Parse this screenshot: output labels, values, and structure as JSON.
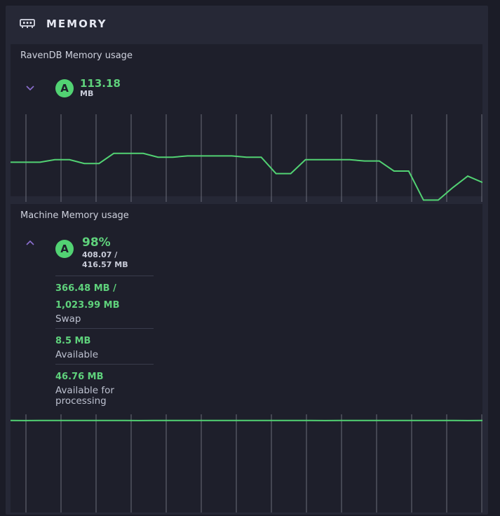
{
  "panel": {
    "title": "MEMORY",
    "icon": "memory-icon"
  },
  "colors": {
    "accent": "#52d273",
    "chevron": "#8c6fd1",
    "grid": "#6a6c7a",
    "background": "#1e1f2b"
  },
  "ravendb": {
    "title": "RavenDB Memory usage",
    "badge": "A",
    "value": "113.18",
    "unit": "MB",
    "chevron": "chevron-down-icon",
    "chart_data": {
      "type": "line",
      "series": [
        {
          "values": [
            62,
            62,
            62,
            64,
            64,
            61,
            61,
            69,
            69,
            69,
            66,
            66,
            67,
            67,
            67,
            67,
            66,
            66,
            53,
            53,
            64,
            64,
            64,
            64,
            63,
            63,
            55,
            55,
            32,
            32,
            42,
            51,
            46
          ]
        }
      ],
      "ylim": [
        0,
        100
      ]
    }
  },
  "machine": {
    "title": "Machine Memory usage",
    "badge": "A",
    "percent": "98%",
    "used_line1": "408.07 /",
    "used_line2": "416.57 MB",
    "chevron": "chevron-up-icon",
    "details": [
      {
        "value_line1": "366.48 MB /",
        "value_line2": "1,023.99 MB",
        "label_line1": "Swap",
        "label_line2": ""
      },
      {
        "value_line1": "8.5 MB",
        "value_line2": "",
        "label_line1": "Available",
        "label_line2": ""
      },
      {
        "value_line1": "46.76 MB",
        "value_line2": "",
        "label_line1": "Available for",
        "label_line2": "processing"
      }
    ],
    "chart_data": {
      "type": "line",
      "series": [
        {
          "values": [
            98,
            97.8,
            98,
            98,
            97.9,
            98,
            97.9,
            98,
            98,
            97.8,
            98,
            97.9,
            98,
            98,
            98,
            97.9,
            98,
            97.9,
            98,
            97.9,
            98,
            98,
            97.8,
            98,
            98,
            97.9,
            98,
            98,
            97.9,
            98,
            98,
            98,
            97.8,
            98
          ]
        }
      ],
      "ylim": [
        0,
        100
      ]
    }
  }
}
